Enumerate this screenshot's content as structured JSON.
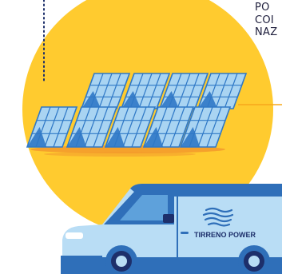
{
  "caption": {
    "lines": [
      "PO",
      "COI",
      "NAZ"
    ]
  },
  "van": {
    "brand_text": "TIRRENO POWER",
    "brand_icon": "waves-logo-icon"
  },
  "illustration": {
    "subject": "solar-panel-array",
    "colors": {
      "sun": "#FFCB2F",
      "panel_light": "#A9D4F2",
      "panel_dark": "#2F78C6",
      "van_light": "#B9DDF5",
      "van_dark": "#2F6FB9",
      "accent_line": "#F7A81B",
      "navy": "#1D2F6B"
    }
  }
}
